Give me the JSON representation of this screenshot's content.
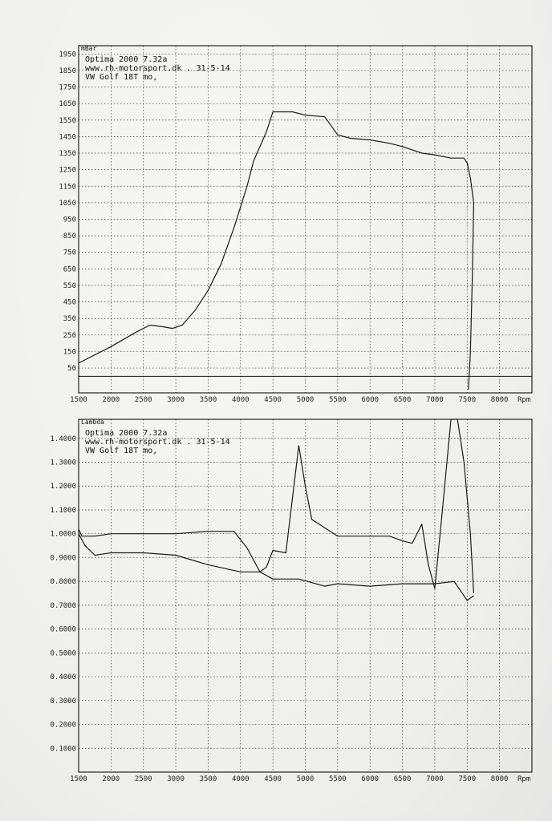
{
  "chart_data": [
    {
      "type": "line",
      "unit_label": "mBar",
      "header_lines": [
        "Optima 2000 7.32a",
        "www.rh-motorsport.dk   . 31-5-14",
        "VW Golf 18T mo,"
      ],
      "xlabel": "Rpm",
      "x_ticks": [
        1500,
        2000,
        2500,
        3000,
        3500,
        4000,
        4500,
        5000,
        5500,
        6000,
        6500,
        7000,
        7500,
        8000
      ],
      "y_ticks": [
        50,
        150,
        250,
        350,
        450,
        550,
        650,
        750,
        850,
        950,
        1050,
        1150,
        1250,
        1350,
        1450,
        1550,
        1650,
        1750,
        1850,
        1950
      ],
      "xlim": [
        1500,
        8500
      ],
      "ylim": [
        -100,
        2000
      ],
      "grid": true,
      "series": [
        {
          "x": [
            1500,
            2000,
            2400,
            2600,
            2800,
            2950,
            3100,
            3300,
            3500,
            3700,
            3900,
            4100,
            4200,
            4400,
            4500,
            4700,
            4800,
            5000,
            5300,
            5500,
            5700,
            6000,
            6300,
            6500,
            6800,
            7000,
            7250,
            7450,
            7500,
            7550,
            7600,
            7580,
            7550,
            7520
          ],
          "y": [
            80,
            180,
            270,
            310,
            300,
            290,
            310,
            400,
            520,
            680,
            900,
            1150,
            1300,
            1480,
            1600,
            1600,
            1600,
            1580,
            1570,
            1460,
            1440,
            1430,
            1410,
            1390,
            1350,
            1340,
            1320,
            1320,
            1290,
            1200,
            1050,
            600,
            150,
            -80
          ]
        }
      ]
    },
    {
      "type": "line",
      "unit_label": "Lambda",
      "header_lines": [
        "Optima 2000 7.32a",
        "www.rh-motorsport.dk   . 31-5-14",
        "VW Golf 18T mo,"
      ],
      "xlabel": "Rpm",
      "x_ticks": [
        1500,
        2000,
        2500,
        3000,
        3500,
        4000,
        4500,
        5000,
        5500,
        6000,
        6500,
        7000,
        7500,
        8000
      ],
      "y_ticks": [
        "0.1000",
        "0.2000",
        "0.3000",
        "0.4000",
        "0.5000",
        "0.6000",
        "0.7000",
        "0.8000",
        "0.9000",
        "1.0000",
        "1.1000",
        "1.2000",
        "1.3000",
        "1.4000"
      ],
      "xlim": [
        1500,
        8500
      ],
      "ylim": [
        0,
        1.48
      ],
      "grid": true,
      "series": [
        {
          "x": [
            1500,
            1550,
            1600,
            1750,
            2000,
            2500,
            3000,
            3500,
            3900,
            4100,
            4300,
            4400,
            4500,
            4700,
            4900,
            5000,
            5100,
            5500,
            6000,
            6300,
            6500,
            6650,
            6800,
            6900,
            7000,
            7100,
            7250,
            7350,
            7450,
            7550,
            7600
          ],
          "y": [
            1.02,
            0.99,
            0.99,
            0.99,
            1.0,
            1.0,
            1.0,
            1.01,
            1.01,
            0.94,
            0.84,
            0.86,
            0.93,
            0.92,
            1.37,
            1.2,
            1.06,
            0.99,
            0.99,
            0.99,
            0.97,
            0.96,
            1.04,
            0.87,
            0.77,
            1.05,
            1.48,
            1.48,
            1.3,
            1.0,
            0.75
          ]
        },
        {
          "x": [
            1500,
            1600,
            1750,
            2000,
            2500,
            3000,
            3500,
            4000,
            4300,
            4500,
            4900,
            5300,
            5500,
            6000,
            6500,
            7000,
            7300,
            7500,
            7600
          ],
          "y": [
            1.0,
            0.95,
            0.91,
            0.92,
            0.92,
            0.91,
            0.87,
            0.84,
            0.84,
            0.81,
            0.81,
            0.78,
            0.79,
            0.78,
            0.79,
            0.79,
            0.8,
            0.72,
            0.74
          ]
        }
      ]
    }
  ]
}
